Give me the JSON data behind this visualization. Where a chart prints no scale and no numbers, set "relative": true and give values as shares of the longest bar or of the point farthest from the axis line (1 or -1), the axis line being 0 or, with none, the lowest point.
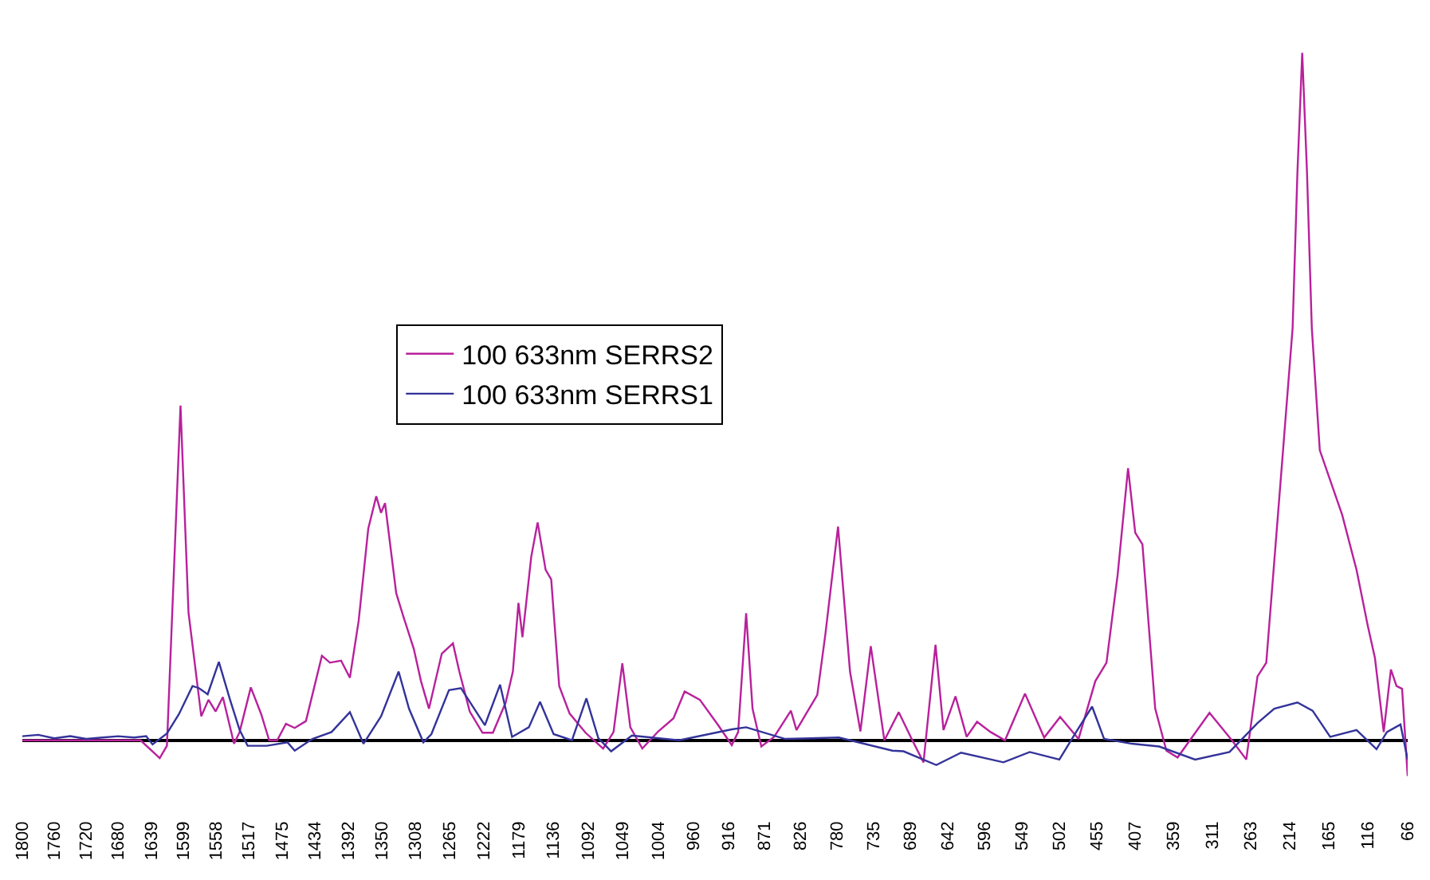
{
  "chart_data": {
    "type": "line",
    "relative": true,
    "legend": "center",
    "xlim": [
      1800,
      66
    ],
    "xticks": [
      1800,
      1760,
      1720,
      1680,
      1639,
      1599,
      1558,
      1517,
      1475,
      1434,
      1392,
      1350,
      1308,
      1265,
      1222,
      1179,
      1136,
      1092,
      1049,
      1004,
      960,
      916,
      871,
      826,
      780,
      735,
      689,
      642,
      596,
      549,
      502,
      455,
      407,
      359,
      311,
      263,
      214,
      165,
      116,
      66
    ],
    "series": [
      {
        "name": "100 633nm SERRS2",
        "color": "#b8219c",
        "x": [
          1800,
          1652,
          1628,
          1619,
          1602,
          1592,
          1576,
          1567,
          1558,
          1549,
          1535,
          1528,
          1514,
          1501,
          1491,
          1481,
          1470,
          1459,
          1445,
          1425,
          1415,
          1401,
          1390,
          1379,
          1367,
          1357,
          1351,
          1346,
          1332,
          1323,
          1310,
          1301,
          1291,
          1275,
          1261,
          1253,
          1240,
          1224,
          1211,
          1195,
          1186,
          1179,
          1174,
          1163,
          1155,
          1145,
          1138,
          1128,
          1115,
          1095,
          1073,
          1060,
          1049,
          1039,
          1024,
          1004,
          985,
          971,
          952,
          929,
          912,
          904,
          894,
          886,
          875,
          859,
          838,
          831,
          805,
          795,
          779,
          764,
          751,
          738,
          721,
          703,
          686,
          672,
          657,
          647,
          632,
          618,
          605,
          588,
          570,
          545,
          521,
          501,
          478,
          457,
          443,
          429,
          416,
          407,
          398,
          382,
          368,
          354,
          314,
          286,
          268,
          254,
          243,
          222,
          210,
          204,
          198,
          192,
          186,
          176,
          148,
          130,
          116,
          107,
          96,
          87,
          80,
          73,
          66
        ],
        "values": [
          0,
          0,
          -0.026,
          -0.008,
          0.487,
          0.186,
          0.035,
          0.059,
          0.042,
          0.063,
          -0.005,
          0.012,
          0.077,
          0.038,
          0,
          0,
          0.024,
          0.018,
          0.028,
          0.123,
          0.113,
          0.116,
          0.091,
          0.174,
          0.308,
          0.355,
          0.331,
          0.345,
          0.214,
          0.18,
          0.133,
          0.086,
          0.046,
          0.126,
          0.141,
          0.1,
          0.042,
          0.011,
          0.011,
          0.055,
          0.1,
          0.2,
          0.15,
          0.267,
          0.317,
          0.248,
          0.234,
          0.079,
          0.039,
          0.011,
          -0.012,
          0.012,
          0.112,
          0.019,
          -0.012,
          0.013,
          0.032,
          0.071,
          0.059,
          0.022,
          -0.007,
          0.012,
          0.185,
          0.046,
          -0.009,
          0.005,
          0.043,
          0.015,
          0.066,
          0.153,
          0.311,
          0.1,
          0.013,
          0.137,
          0,
          0.041,
          0,
          -0.032,
          0.139,
          0.015,
          0.064,
          0.005,
          0.027,
          0.012,
          0,
          0.068,
          0.004,
          0.034,
          0.002,
          0.086,
          0.113,
          0.241,
          0.396,
          0.302,
          0.285,
          0.046,
          -0.015,
          -0.025,
          0.04,
          0,
          -0.028,
          0.093,
          0.113,
          0.422,
          0.6,
          0.826,
          1.0,
          0.826,
          0.6,
          0.422,
          0.328,
          0.248,
          0.167,
          0.12,
          0.012,
          0.103,
          0.079,
          0.075,
          -0.052
        ]
      },
      {
        "name": "100 633nm SERRS1",
        "color": "#33339a",
        "x": [
          1800,
          1780,
          1760,
          1740,
          1720,
          1700,
          1680,
          1660,
          1645,
          1637,
          1619,
          1604,
          1587,
          1579,
          1568,
          1554,
          1540,
          1528,
          1518,
          1494,
          1468,
          1459,
          1437,
          1413,
          1390,
          1373,
          1351,
          1329,
          1316,
          1298,
          1288,
          1266,
          1251,
          1240,
          1221,
          1202,
          1187,
          1166,
          1152,
          1135,
          1112,
          1094,
          1079,
          1063,
          1037,
          978,
          912,
          894,
          845,
          778,
          711,
          697,
          656,
          625,
          572,
          539,
          502,
          481,
          461,
          446,
          411,
          377,
          332,
          289,
          254,
          233,
          204,
          185,
          163,
          130,
          105,
          92,
          75,
          66
        ],
        "values": [
          0.006,
          0.008,
          0.003,
          0.006,
          0.002,
          0.004,
          0.006,
          0.004,
          0.006,
          -0.006,
          0.01,
          0.038,
          0.079,
          0.076,
          0.067,
          0.114,
          0.059,
          0.015,
          -0.008,
          -0.008,
          -0.003,
          -0.015,
          0.002,
          0.012,
          0.041,
          -0.005,
          0.035,
          0.1,
          0.046,
          -0.003,
          0.009,
          0.073,
          0.076,
          0.056,
          0.022,
          0.081,
          0.005,
          0.019,
          0.056,
          0.009,
          0,
          0.061,
          0.003,
          -0.016,
          0.007,
          0,
          0.016,
          0.019,
          0.002,
          0.004,
          -0.015,
          -0.016,
          -0.036,
          -0.018,
          -0.032,
          -0.017,
          -0.028,
          0.012,
          0.049,
          0.002,
          -0.005,
          -0.009,
          -0.028,
          -0.017,
          0.025,
          0.046,
          0.055,
          0.043,
          0.005,
          0.015,
          -0.013,
          0.012,
          0.023,
          -0.028
        ]
      }
    ]
  }
}
